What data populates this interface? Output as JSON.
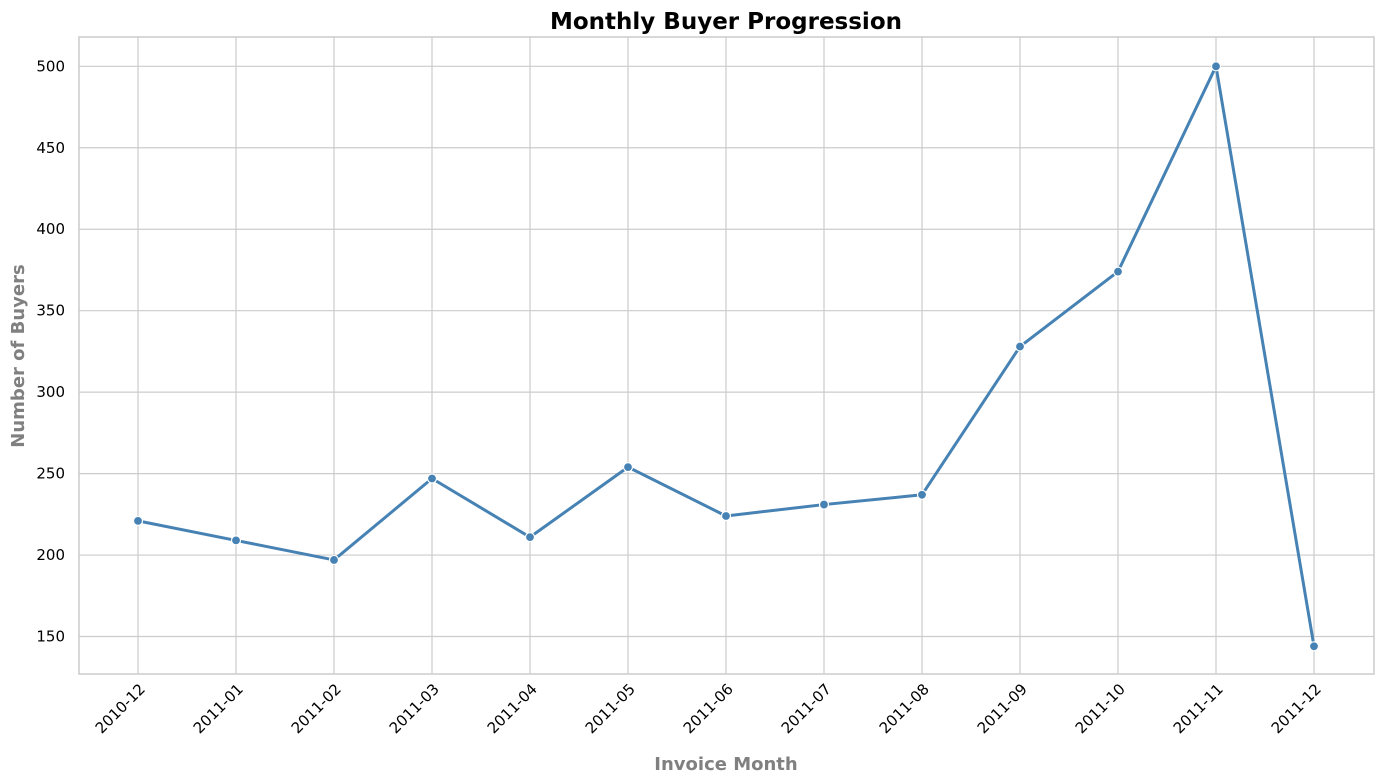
{
  "chart_data": {
    "type": "line",
    "title": "Monthly Buyer Progression",
    "xlabel": "Invoice Month",
    "ylabel": "Number of Buyers",
    "categories": [
      "2010-12",
      "2011-01",
      "2011-02",
      "2011-03",
      "2011-04",
      "2011-05",
      "2011-06",
      "2011-07",
      "2011-08",
      "2011-09",
      "2011-10",
      "2011-11",
      "2011-12"
    ],
    "series": [
      {
        "values": [
          221,
          209,
          197,
          247,
          211,
          254,
          224,
          231,
          237,
          328,
          374,
          500,
          144
        ]
      }
    ],
    "yticks": [
      150,
      200,
      250,
      300,
      350,
      400,
      450,
      500
    ],
    "ylim": [
      127,
      518
    ],
    "grid": true,
    "line_color": "#4682b4",
    "marker": "circle",
    "x_tick_rotation_deg": 45
  }
}
